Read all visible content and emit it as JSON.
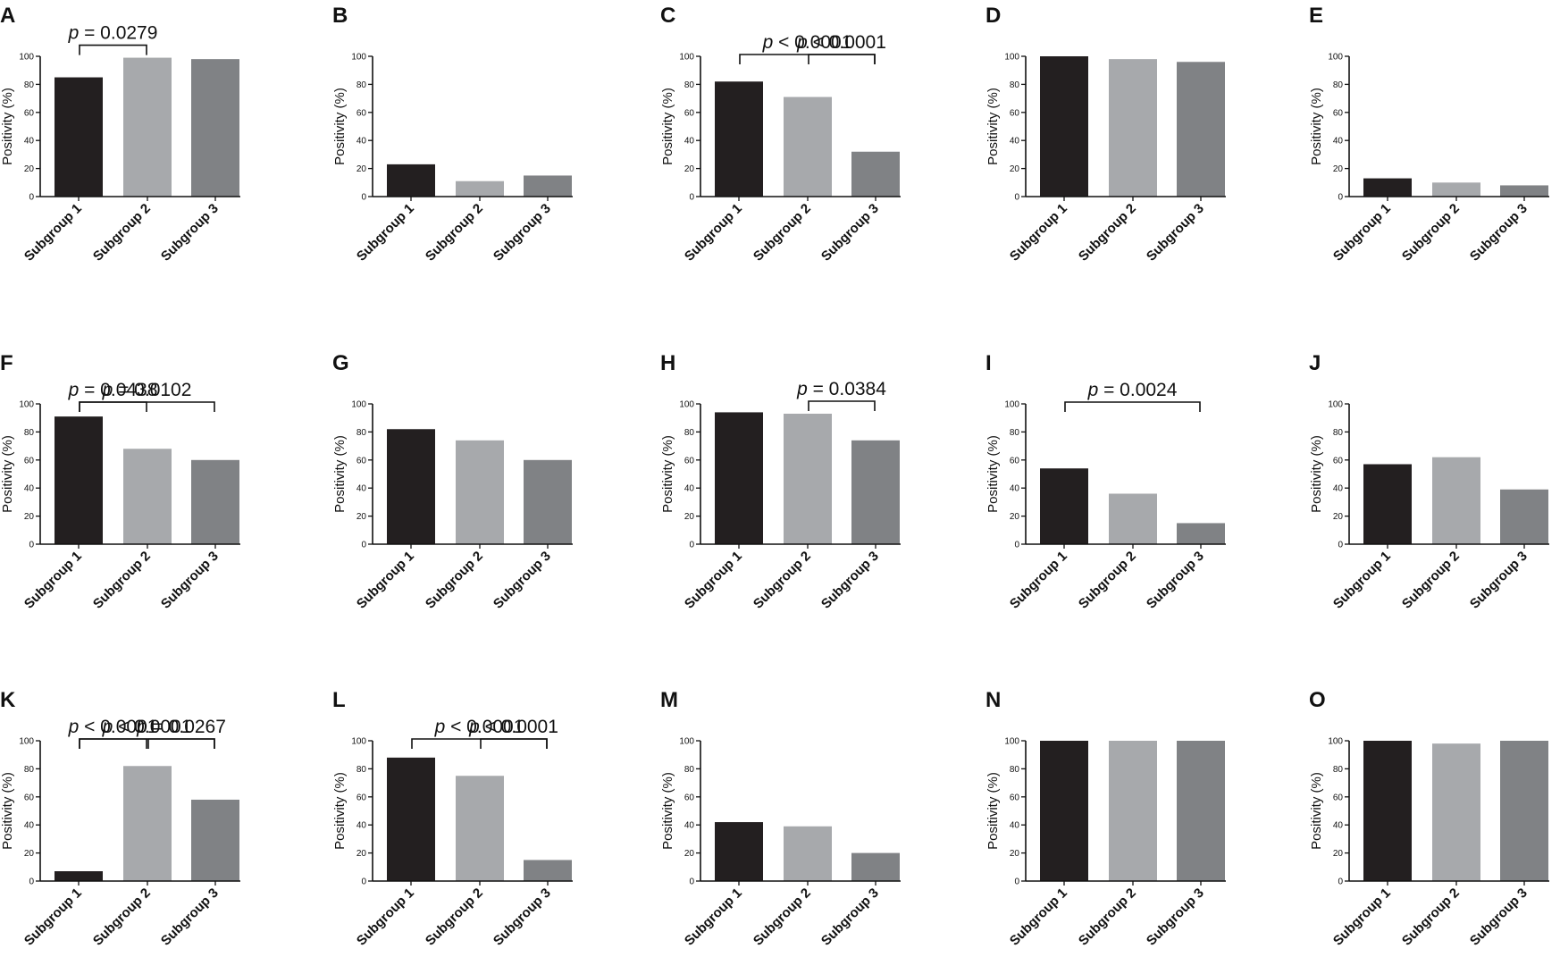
{
  "chart_data": [
    {
      "panel": "A",
      "type": "bar",
      "categories": [
        "Subgroup 1",
        "Subgroup 2",
        "Subgroup 3"
      ],
      "values": [
        85,
        99,
        98
      ],
      "ylabel": "Positivity (%)",
      "ylim": [
        0,
        100
      ],
      "yticks": [
        0,
        20,
        40,
        60,
        80,
        100
      ],
      "annotations": [
        {
          "from": 0,
          "to": 1,
          "p_prefix": "p",
          "p_rest": " = 0.0279"
        }
      ]
    },
    {
      "panel": "B",
      "type": "bar",
      "categories": [
        "Subgroup 1",
        "Subgroup 2",
        "Subgroup 3"
      ],
      "values": [
        23,
        11,
        15
      ],
      "ylabel": "Positivity (%)",
      "ylim": [
        0,
        100
      ],
      "yticks": [
        0,
        20,
        40,
        60,
        80,
        100
      ],
      "annotations": []
    },
    {
      "panel": "C",
      "type": "bar",
      "categories": [
        "Subgroup 1",
        "Subgroup 2",
        "Subgroup 3"
      ],
      "values": [
        82,
        71,
        32
      ],
      "ylabel": "Positivity (%)",
      "ylim": [
        0,
        100
      ],
      "yticks": [
        0,
        20,
        40,
        60,
        80,
        100
      ],
      "annotations": [
        {
          "from": 0,
          "to": 2,
          "p_prefix": "p",
          "p_rest": " < 0.0001"
        },
        {
          "from": 1,
          "to": 2,
          "p_prefix": "p",
          "p_rest": " < 0.0001"
        }
      ]
    },
    {
      "panel": "D",
      "type": "bar",
      "categories": [
        "Subgroup 1",
        "Subgroup 2",
        "Subgroup 3"
      ],
      "values": [
        100,
        98,
        96
      ],
      "ylabel": "Positivity (%)",
      "ylim": [
        0,
        100
      ],
      "yticks": [
        0,
        20,
        40,
        60,
        80,
        100
      ],
      "annotations": []
    },
    {
      "panel": "E",
      "type": "bar",
      "categories": [
        "Subgroup 1",
        "Subgroup 2",
        "Subgroup 3"
      ],
      "values": [
        13,
        10,
        8
      ],
      "ylabel": "Positivity (%)",
      "ylim": [
        0,
        100
      ],
      "yticks": [
        0,
        20,
        40,
        60,
        80,
        100
      ],
      "annotations": []
    },
    {
      "panel": "F",
      "type": "bar",
      "categories": [
        "Subgroup 1",
        "Subgroup 2",
        "Subgroup 3"
      ],
      "values": [
        91,
        68,
        60
      ],
      "ylabel": "Positivity (%)",
      "ylim": [
        0,
        100
      ],
      "yticks": [
        0,
        20,
        40,
        60,
        80,
        100
      ],
      "annotations": [
        {
          "from": 0,
          "to": 2,
          "p_prefix": "p",
          "p_rest": " = 0.0102"
        },
        {
          "from": 0,
          "to": 1,
          "p_prefix": "p",
          "p_rest": " = 0.0438"
        }
      ]
    },
    {
      "panel": "G",
      "type": "bar",
      "categories": [
        "Subgroup 1",
        "Subgroup 2",
        "Subgroup 3"
      ],
      "values": [
        82,
        74,
        60
      ],
      "ylabel": "Positivity (%)",
      "ylim": [
        0,
        100
      ],
      "yticks": [
        0,
        20,
        40,
        60,
        80,
        100
      ],
      "annotations": []
    },
    {
      "panel": "H",
      "type": "bar",
      "categories": [
        "Subgroup 1",
        "Subgroup 2",
        "Subgroup 3"
      ],
      "values": [
        94,
        93,
        74
      ],
      "ylabel": "Positivity (%)",
      "ylim": [
        0,
        100
      ],
      "yticks": [
        0,
        20,
        40,
        60,
        80,
        100
      ],
      "annotations": [
        {
          "from": 1,
          "to": 2,
          "p_prefix": "p",
          "p_rest": " = 0.0384"
        }
      ]
    },
    {
      "panel": "I",
      "type": "bar",
      "categories": [
        "Subgroup 1",
        "Subgroup 2",
        "Subgroup 3"
      ],
      "values": [
        54,
        36,
        15
      ],
      "ylabel": "Positivity (%)",
      "ylim": [
        0,
        100
      ],
      "yticks": [
        0,
        20,
        40,
        60,
        80,
        100
      ],
      "annotations": [
        {
          "from": 0,
          "to": 2,
          "p_prefix": "p",
          "p_rest": " = 0.0024"
        }
      ]
    },
    {
      "panel": "J",
      "type": "bar",
      "categories": [
        "Subgroup 1",
        "Subgroup 2",
        "Subgroup 3"
      ],
      "values": [
        57,
        62,
        39
      ],
      "ylabel": "Positivity (%)",
      "ylim": [
        0,
        100
      ],
      "yticks": [
        0,
        20,
        40,
        60,
        80,
        100
      ],
      "annotations": []
    },
    {
      "panel": "K",
      "type": "bar",
      "categories": [
        "Subgroup 1",
        "Subgroup 2",
        "Subgroup 3"
      ],
      "values": [
        7,
        82,
        58
      ],
      "ylabel": "Positivity (%)",
      "ylim": [
        0,
        100
      ],
      "yticks": [
        0,
        20,
        40,
        60,
        80,
        100
      ],
      "annotations": [
        {
          "from": 0,
          "to": 2,
          "p_prefix": "p",
          "p_rest": " < 0.0001"
        },
        {
          "from": 0,
          "to": 1,
          "p_prefix": "p",
          "p_rest": " < 0.0001"
        },
        {
          "from": 1,
          "to": 2,
          "p_prefix": "p",
          "p_rest": " = 0.0267"
        }
      ]
    },
    {
      "panel": "L",
      "type": "bar",
      "categories": [
        "Subgroup 1",
        "Subgroup 2",
        "Subgroup 3"
      ],
      "values": [
        88,
        75,
        15
      ],
      "ylabel": "Positivity (%)",
      "ylim": [
        0,
        100
      ],
      "yticks": [
        0,
        20,
        40,
        60,
        80,
        100
      ],
      "annotations": [
        {
          "from": 0,
          "to": 2,
          "p_prefix": "p",
          "p_rest": " < 0.0001"
        },
        {
          "from": 1,
          "to": 2,
          "p_prefix": "p",
          "p_rest": " < 0.0001"
        }
      ]
    },
    {
      "panel": "M",
      "type": "bar",
      "categories": [
        "Subgroup 1",
        "Subgroup 2",
        "Subgroup 3"
      ],
      "values": [
        42,
        39,
        20
      ],
      "ylabel": "Positivity (%)",
      "ylim": [
        0,
        100
      ],
      "yticks": [
        0,
        20,
        40,
        60,
        80,
        100
      ],
      "annotations": []
    },
    {
      "panel": "N",
      "type": "bar",
      "categories": [
        "Subgroup 1",
        "Subgroup 2",
        "Subgroup 3"
      ],
      "values": [
        100,
        100,
        100
      ],
      "ylabel": "Positivity (%)",
      "ylim": [
        0,
        100
      ],
      "yticks": [
        0,
        20,
        40,
        60,
        80,
        100
      ],
      "annotations": []
    },
    {
      "panel": "O",
      "type": "bar",
      "categories": [
        "Subgroup 1",
        "Subgroup 2",
        "Subgroup 3"
      ],
      "values": [
        100,
        98,
        100
      ],
      "ylabel": "Positivity (%)",
      "ylim": [
        0,
        100
      ],
      "yticks": [
        0,
        20,
        40,
        60,
        80,
        100
      ],
      "annotations": []
    }
  ],
  "colors": {
    "subgroup_1": "#231f20",
    "subgroup_2": "#a7a9ac",
    "subgroup_3": "#808285",
    "ink": "#111111"
  }
}
